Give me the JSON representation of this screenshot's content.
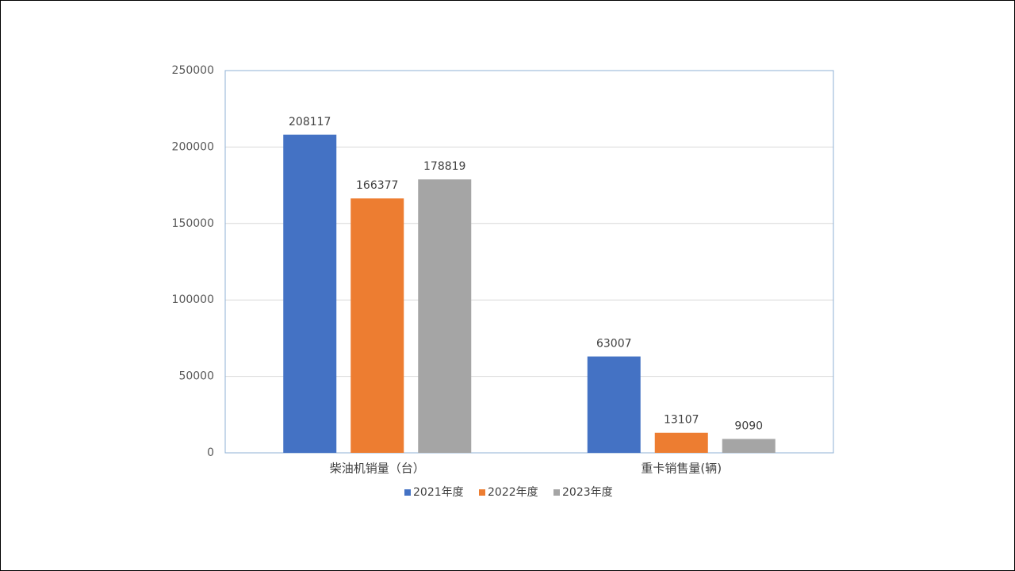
{
  "chart_data": {
    "type": "bar",
    "categories": [
      "柴油机销量（台）",
      "重卡销售量(辆)"
    ],
    "series": [
      {
        "name": "2021年度",
        "color": "#4472c4",
        "values": [
          208117,
          63007
        ]
      },
      {
        "name": "2022年度",
        "color": "#ed7d31",
        "values": [
          166377,
          13107
        ]
      },
      {
        "name": "2023年度",
        "color": "#a5a5a5",
        "values": [
          178819,
          9090
        ]
      }
    ],
    "ylim": [
      0,
      250000
    ],
    "yticks": [
      0,
      50000,
      100000,
      150000,
      200000,
      250000
    ],
    "grid": true,
    "data_labels": true,
    "legend": "bottom"
  }
}
